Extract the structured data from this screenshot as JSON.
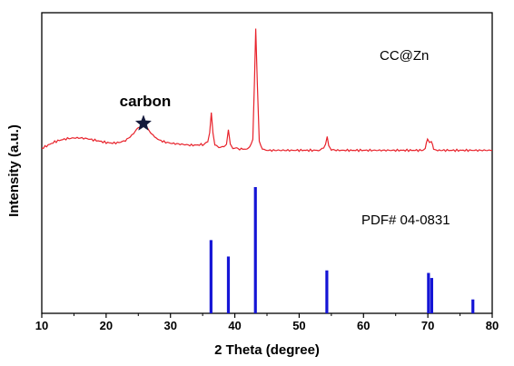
{
  "chart_data": {
    "type": "line",
    "xlabel": "2 Theta (degree)",
    "ylabel": "Intensity (a.u.)",
    "xlim": [
      10,
      80
    ],
    "xticks": [
      10,
      20,
      30,
      40,
      50,
      60,
      70,
      80
    ],
    "y_ticks_shown": false,
    "grid": false,
    "annotations": [
      {
        "text": "CC@Zn",
        "x": 72,
        "series": "xrd"
      },
      {
        "text": "PDF# 04-0831",
        "x": 70,
        "series": "reference"
      },
      {
        "text": "carbon",
        "x": 25.8,
        "series": "xrd",
        "marker": "star"
      }
    ],
    "series": [
      {
        "kind": "line",
        "color": "#e8222b",
        "ylim": [
          0,
          120
        ],
        "x": [
          10,
          11,
          12,
          13,
          14,
          15,
          16,
          17,
          18,
          19,
          20,
          21,
          22,
          23,
          24,
          24.5,
          25,
          25.5,
          25.8,
          26.2,
          26.7,
          27.3,
          28,
          29,
          30,
          31,
          32,
          33,
          34,
          35,
          35.8,
          36.1,
          36.35,
          36.6,
          36.9,
          37.5,
          38.3,
          38.7,
          39.0,
          39.3,
          39.7,
          40.5,
          41.5,
          42.3,
          42.8,
          43.05,
          43.25,
          43.5,
          43.8,
          44.3,
          45,
          46,
          47,
          48,
          49,
          50,
          51,
          52,
          53,
          53.8,
          54.1,
          54.35,
          54.6,
          55,
          56,
          57,
          58,
          59,
          60,
          61,
          62,
          63,
          64,
          65,
          66,
          67,
          68,
          69,
          69.6,
          69.95,
          70.25,
          70.55,
          70.9,
          71.3,
          72,
          73,
          74,
          75,
          76,
          77,
          78,
          79,
          80
        ],
        "y": [
          13,
          15.5,
          18,
          19.5,
          20.5,
          21,
          21,
          20.5,
          19.5,
          18.5,
          17.5,
          17,
          17.5,
          19,
          23,
          26,
          29,
          30,
          30.5,
          29.5,
          27,
          23,
          20,
          18,
          17,
          16.5,
          16,
          15.5,
          15.5,
          16,
          18,
          25,
          41,
          24,
          15.5,
          13.5,
          14,
          17,
          27,
          16,
          13,
          12.5,
          12.5,
          13.5,
          20,
          64,
          105,
          62,
          18,
          12.5,
          11.5,
          11.5,
          11.5,
          11.5,
          11.5,
          11.5,
          11.5,
          11.5,
          11.5,
          12.5,
          16,
          22,
          15,
          12,
          11.5,
          11.5,
          11.5,
          11.5,
          11.5,
          11.5,
          11.5,
          11.5,
          11.5,
          11.5,
          11.5,
          11.5,
          11.5,
          11.5,
          13,
          20,
          17,
          19,
          13,
          11.5,
          11.5,
          11.5,
          11.5,
          11.5,
          11.5,
          11.5,
          11.5,
          11.5,
          11.5
        ]
      },
      {
        "kind": "stick",
        "color": "#1515d6",
        "ylim": [
          0,
          100
        ],
        "x": [
          36.3,
          39.0,
          43.2,
          54.3,
          70.1,
          70.6,
          77.0
        ],
        "y": [
          58,
          45,
          100,
          34,
          32,
          28,
          11
        ]
      }
    ]
  }
}
